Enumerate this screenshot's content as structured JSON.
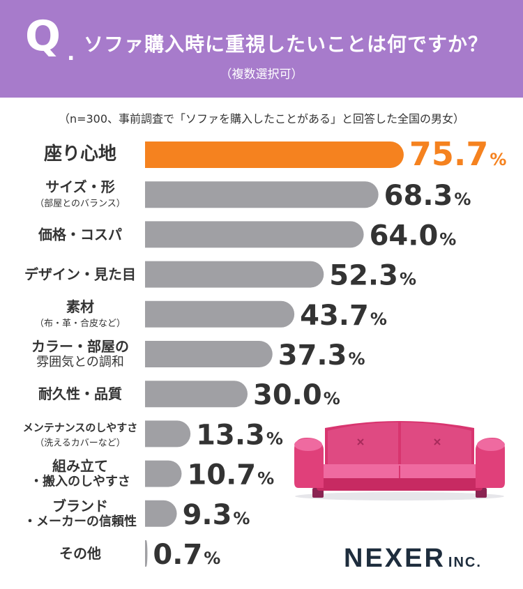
{
  "header": {
    "q_mark": "Q",
    "q_dot": ".",
    "question": "ソファ購入時に重視したいことは何ですか？",
    "multi_select": "（複数選択可）"
  },
  "note": "（n=300、事前調査で「ソファを購入したことがある」と回答した全国の男女）",
  "chart_data": {
    "type": "bar",
    "orientation": "horizontal",
    "unit": "%",
    "xlim": [
      0,
      100
    ],
    "grid": false,
    "categories": [
      {
        "label": "座り心地",
        "sub": ""
      },
      {
        "label": "サイズ・形",
        "sub": "（部屋とのバランス）"
      },
      {
        "label": "価格・コスパ",
        "sub": ""
      },
      {
        "label": "デザイン・見た目",
        "sub": ""
      },
      {
        "label": "素材",
        "sub": "（布・革・合皮など）"
      },
      {
        "label": "カラー・部屋の",
        "sub": "雰囲気との調和"
      },
      {
        "label": "耐久性・品質",
        "sub": ""
      },
      {
        "label": "メンテナンスのしやすさ",
        "sub": "（洗えるカバーなど）"
      },
      {
        "label": "組み立て",
        "sub": "・搬入のしやすさ"
      },
      {
        "label": "ブランド",
        "sub": "・メーカーの信頼性"
      },
      {
        "label": "その他",
        "sub": ""
      }
    ],
    "values": [
      75.7,
      68.3,
      64.0,
      52.3,
      43.7,
      37.3,
      30.0,
      13.3,
      10.7,
      9.3,
      0.7
    ],
    "value_labels": [
      "75.7",
      "68.3",
      "64.0",
      "52.3",
      "43.7",
      "37.3",
      "30.0",
      "13.3",
      "10.7",
      "9.3",
      "0.7"
    ],
    "highlight_index": 0,
    "colors": {
      "highlight": "#f5821f",
      "bar": "#a0a0a4",
      "label": "#333333",
      "value": "#333333"
    }
  },
  "logo": {
    "main": "NEXER",
    "small": "INC."
  }
}
